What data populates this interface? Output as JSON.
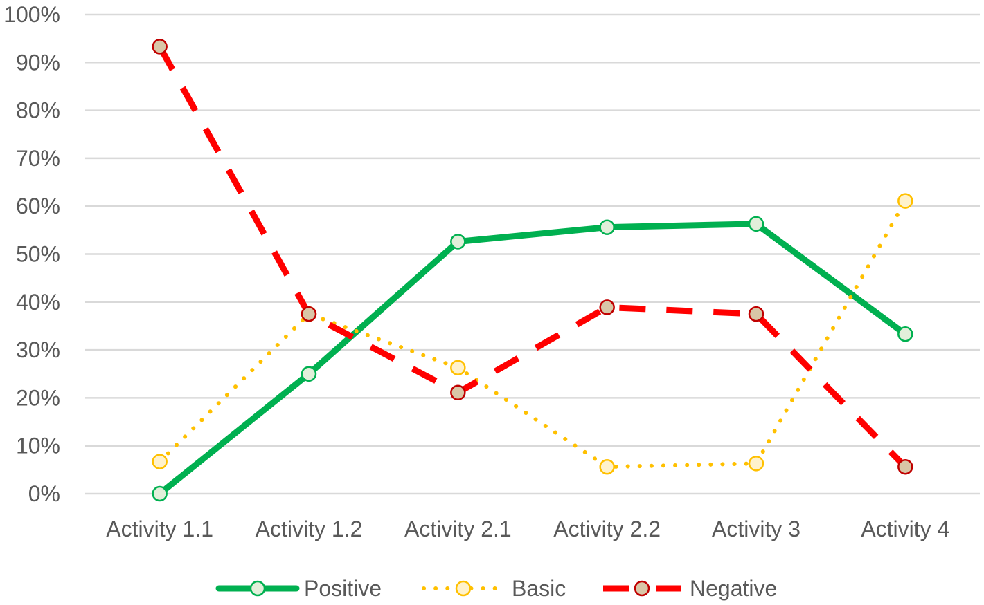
{
  "chart_data": {
    "type": "line",
    "title": "",
    "xlabel": "",
    "ylabel": "",
    "categories": [
      "Activity 1.1",
      "Activity 1.2",
      "Activity 2.1",
      "Activity 2.2",
      "Activity 3",
      "Activity 4"
    ],
    "y_ticks": [
      "0%",
      "10%",
      "20%",
      "30%",
      "40%",
      "50%",
      "60%",
      "70%",
      "80%",
      "90%",
      "100%"
    ],
    "ylim": [
      0,
      100
    ],
    "grid": true,
    "legend": "bottom",
    "series": [
      {
        "name": "Positive",
        "values": [
          0,
          25,
          52.6,
          55.6,
          56.3,
          33.3
        ],
        "color": "#00b050",
        "marker_fill": "#e2efda",
        "line_style": "solid"
      },
      {
        "name": "Basic",
        "values": [
          6.7,
          37.5,
          26.3,
          5.6,
          6.3,
          61.1
        ],
        "color": "#ffc000",
        "marker_fill": "#fff2cc",
        "line_style": "dotted"
      },
      {
        "name": "Negative",
        "values": [
          93.3,
          37.5,
          21.1,
          38.9,
          37.5,
          5.6
        ],
        "color": "#ff0000",
        "marker_fill": "#d9c6a7",
        "marker_stroke": "#c00000",
        "line_style": "dashed"
      }
    ]
  }
}
